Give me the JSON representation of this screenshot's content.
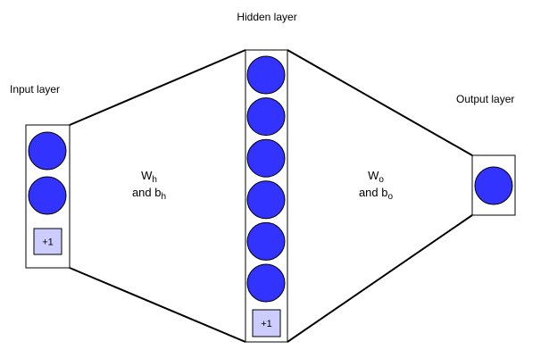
{
  "diagram": {
    "input_layer": {
      "title": "Input layer",
      "neurons": 2,
      "bias_label": "+1"
    },
    "hidden_layer": {
      "title": "Hidden layer",
      "neurons": 6,
      "bias_label": "+1"
    },
    "output_layer": {
      "title": "Output layer",
      "neurons": 1
    },
    "input_to_hidden": {
      "weight_symbol": "W",
      "weight_sub": "h",
      "bias_prefix": "and b",
      "bias_sub": "h"
    },
    "hidden_to_output": {
      "weight_symbol": "W",
      "weight_sub": "o",
      "bias_prefix": "and b",
      "bias_sub": "o"
    }
  },
  "colors": {
    "neuron_fill": "#3333ff",
    "bias_fill": "#ccccff",
    "stroke": "#000000"
  }
}
